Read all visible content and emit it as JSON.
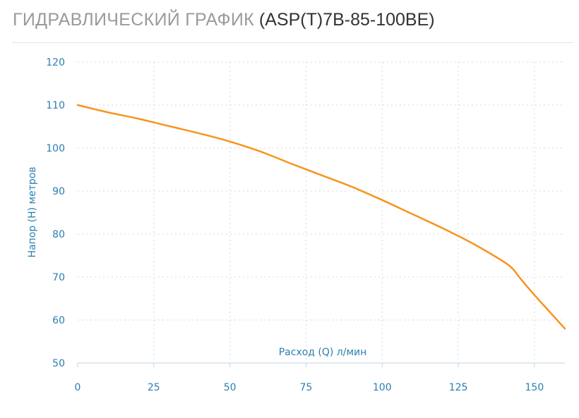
{
  "title": {
    "main": "ГИДРАВЛИЧЕСКИЙ ГРАФИК",
    "model": "(ASP(T)7B-85-100BE)"
  },
  "colors": {
    "title_main": "#9a9a9a",
    "title_model": "#333333",
    "axis_text": "#2a7fb0",
    "line": "#f7941d",
    "grid": "#d9d9d9",
    "axis": "#c0d4e4"
  },
  "chart_data": {
    "type": "line",
    "xlabel": "Расход (Q) л/мин",
    "ylabel": "Напор (H) метров",
    "xlim": [
      0,
      160
    ],
    "ylim": [
      50,
      120
    ],
    "xticks": [
      0,
      25,
      50,
      75,
      100,
      125,
      150
    ],
    "yticks": [
      50,
      60,
      70,
      80,
      90,
      100,
      110,
      120
    ],
    "grid": true,
    "series": [
      {
        "x": [
          0,
          10,
          20,
          30,
          40,
          50,
          60,
          70,
          80,
          90,
          100,
          110,
          120,
          130,
          140,
          143,
          145,
          150,
          155,
          160
        ],
        "y": [
          110,
          108.3,
          106.8,
          105.1,
          103.4,
          101.5,
          99.2,
          96.4,
          93.7,
          91.0,
          87.9,
          84.6,
          81.3,
          77.7,
          73.5,
          71.8,
          70.0,
          65.8,
          61.9,
          58.0
        ]
      }
    ]
  }
}
